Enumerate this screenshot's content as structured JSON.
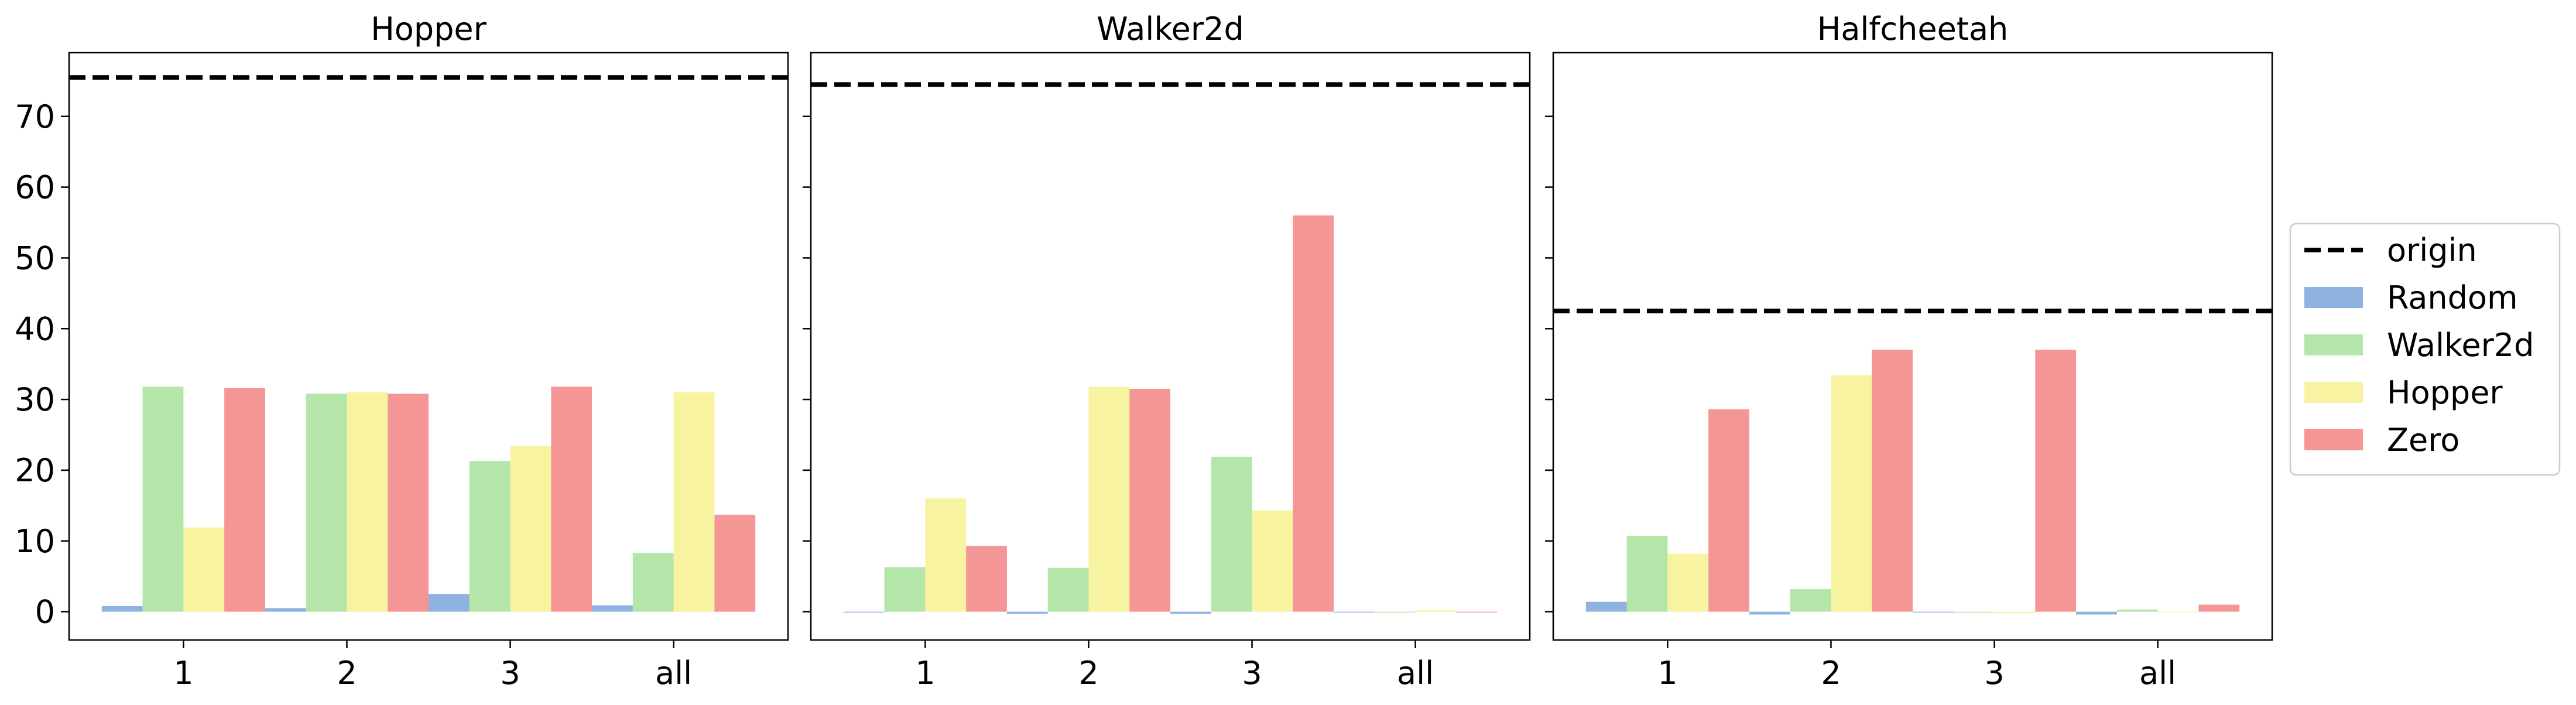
{
  "chart_data": [
    {
      "type": "bar",
      "title": "Hopper",
      "categories": [
        "1",
        "2",
        "3",
        "all"
      ],
      "origin": 75.5,
      "ylim": [
        -4,
        79
      ],
      "yticks": [
        0,
        10,
        20,
        30,
        40,
        50,
        60,
        70
      ],
      "series": [
        {
          "name": "Random",
          "values": [
            0.8,
            0.5,
            2.5,
            0.9
          ]
        },
        {
          "name": "Walker2d",
          "values": [
            31.8,
            30.8,
            21.3,
            8.3
          ]
        },
        {
          "name": "Hopper",
          "values": [
            11.9,
            31.0,
            23.4,
            31.0
          ]
        },
        {
          "name": "Zero",
          "values": [
            31.6,
            30.8,
            31.8,
            13.7
          ]
        }
      ]
    },
    {
      "type": "bar",
      "title": "Walker2d",
      "categories": [
        "1",
        "2",
        "3",
        "all"
      ],
      "origin": 74.5,
      "ylim": [
        -4,
        79
      ],
      "yticks": [
        0,
        10,
        20,
        30,
        40,
        50,
        60,
        70
      ],
      "series": [
        {
          "name": "Random",
          "values": [
            0.0,
            -0.3,
            -0.3,
            0.0
          ]
        },
        {
          "name": "Walker2d",
          "values": [
            6.3,
            6.2,
            21.9,
            0.0
          ]
        },
        {
          "name": "Hopper",
          "values": [
            16.0,
            31.8,
            14.3,
            0.2
          ]
        },
        {
          "name": "Zero",
          "values": [
            9.3,
            31.5,
            56.0,
            0.0
          ]
        }
      ]
    },
    {
      "type": "bar",
      "title": "Halfcheetah",
      "categories": [
        "1",
        "2",
        "3",
        "all"
      ],
      "origin": 42.5,
      "ylim": [
        -4,
        79
      ],
      "yticks": [
        0,
        10,
        20,
        30,
        40,
        50,
        60,
        70
      ],
      "series": [
        {
          "name": "Random",
          "values": [
            1.4,
            -0.4,
            0.0,
            -0.4
          ]
        },
        {
          "name": "Walker2d",
          "values": [
            10.7,
            3.2,
            0.0,
            0.3
          ]
        },
        {
          "name": "Hopper",
          "values": [
            8.2,
            33.4,
            -0.2,
            0.0
          ]
        },
        {
          "name": "Zero",
          "values": [
            28.6,
            37.0,
            37.0,
            1.0
          ]
        }
      ]
    }
  ],
  "legend": {
    "placement": "right",
    "items": [
      {
        "label": "origin",
        "kind": "dashed-line",
        "color": "#000000"
      },
      {
        "label": "Random",
        "kind": "patch",
        "color": "#8fb3e0"
      },
      {
        "label": "Walker2d",
        "kind": "patch",
        "color": "#b3e6a8"
      },
      {
        "label": "Hopper",
        "kind": "patch",
        "color": "#f7f3a1"
      },
      {
        "label": "Zero",
        "kind": "patch",
        "color": "#f59696"
      }
    ]
  },
  "colors": {
    "Random": "#8fb3e0",
    "Walker2d": "#b3e6a8",
    "Hopper": "#f7f3a1",
    "Zero": "#f59696",
    "origin": "#000000"
  },
  "grid": false
}
